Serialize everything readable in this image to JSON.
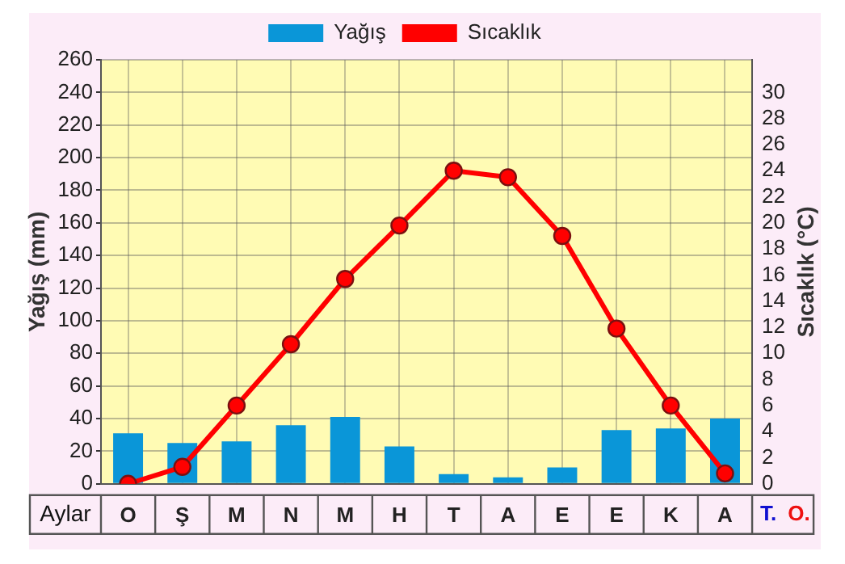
{
  "chart_data": {
    "type": "bar",
    "categories": [
      "O",
      "Ş",
      "M",
      "N",
      "M",
      "H",
      "T",
      "A",
      "E",
      "E",
      "K",
      "A"
    ],
    "series": [
      {
        "name": "Yağış",
        "color": "#0a96d8",
        "values": [
          31,
          25,
          26,
          36,
          41,
          23,
          6,
          4,
          10,
          33,
          34,
          40
        ]
      },
      {
        "name": "Sıcaklık",
        "type": "line",
        "axis": "y2",
        "color": "#ff0000",
        "marker": "circle",
        "values": [
          0,
          1.3,
          6,
          10.7,
          15.7,
          19.8,
          24,
          23.5,
          19,
          11.9,
          6,
          0.8
        ]
      }
    ],
    "xlabel": "Aylar",
    "ylabel": "Yağış (mm)",
    "y2label": "Sıcaklık (°C)",
    "ylim": [
      0,
      260
    ],
    "yticks": [
      0,
      20,
      40,
      60,
      80,
      100,
      120,
      140,
      160,
      180,
      200,
      220,
      240,
      260
    ],
    "y2lim": [
      0,
      32.5
    ],
    "y2ticks": [
      0,
      2,
      4,
      6,
      8,
      10,
      12,
      14,
      16,
      18,
      20,
      22,
      24,
      26,
      28,
      30
    ],
    "grid": true,
    "legend": "top",
    "annotations": [
      "T.",
      "O."
    ]
  }
}
